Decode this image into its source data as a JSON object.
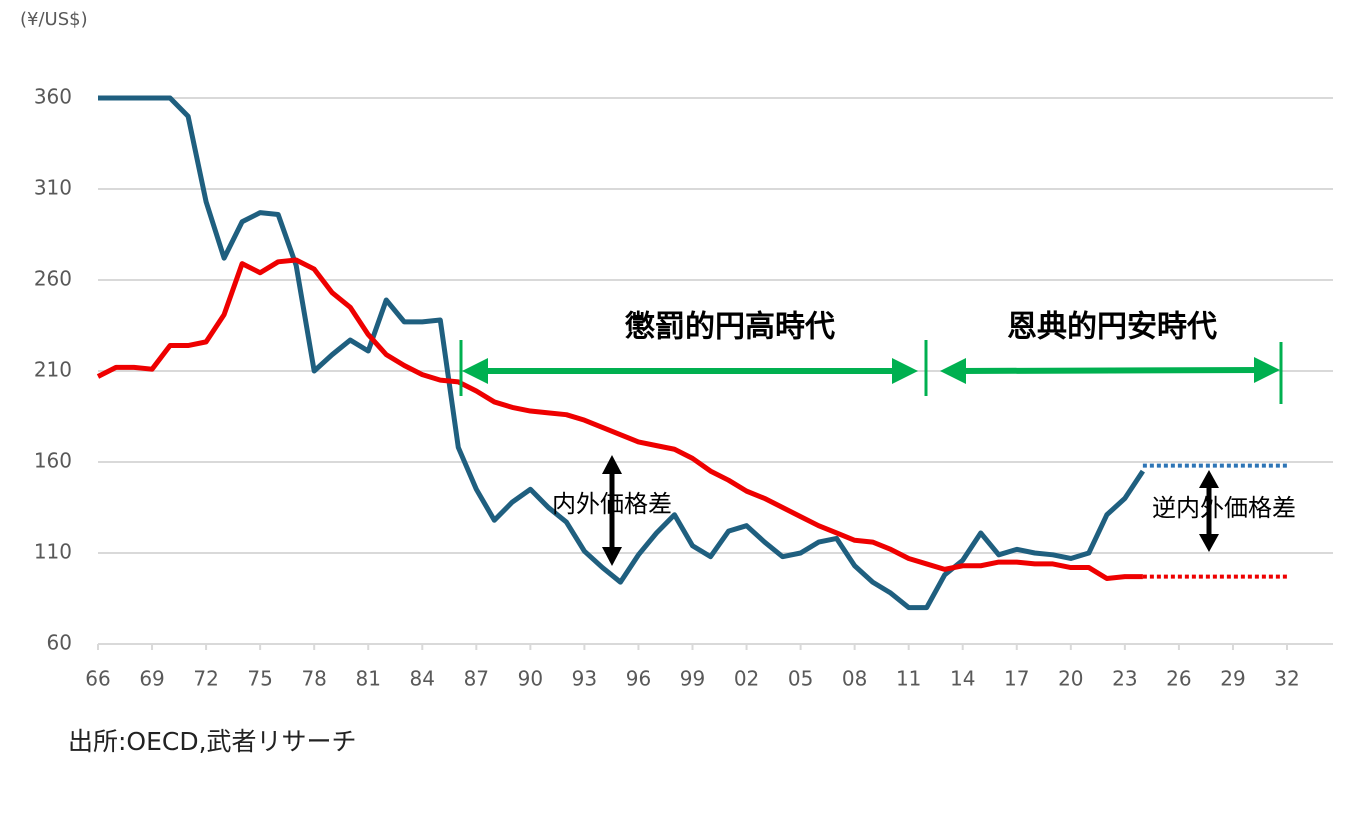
{
  "chart_data": {
    "type": "line",
    "y_unit_label": "(¥/US$)",
    "source": "出所:OECD,武者リサーチ",
    "xlim": [
      1966,
      2032
    ],
    "ylim": [
      60,
      360
    ],
    "yticks": [
      60,
      110,
      160,
      210,
      260,
      310,
      360
    ],
    "xticks": [
      {
        "value": 1966,
        "label": "66"
      },
      {
        "value": 1969,
        "label": "69"
      },
      {
        "value": 1972,
        "label": "72"
      },
      {
        "value": 1975,
        "label": "75"
      },
      {
        "value": 1978,
        "label": "78"
      },
      {
        "value": 1981,
        "label": "81"
      },
      {
        "value": 1984,
        "label": "84"
      },
      {
        "value": 1987,
        "label": "87"
      },
      {
        "value": 1990,
        "label": "90"
      },
      {
        "value": 1993,
        "label": "93"
      },
      {
        "value": 1996,
        "label": "96"
      },
      {
        "value": 1999,
        "label": "99"
      },
      {
        "value": 2002,
        "label": "02"
      },
      {
        "value": 2005,
        "label": "05"
      },
      {
        "value": 2008,
        "label": "08"
      },
      {
        "value": 2011,
        "label": "11"
      },
      {
        "value": 2014,
        "label": "14"
      },
      {
        "value": 2017,
        "label": "17"
      },
      {
        "value": 2020,
        "label": "20"
      },
      {
        "value": 2023,
        "label": "23"
      },
      {
        "value": 2026,
        "label": "26"
      },
      {
        "value": 2029,
        "label": "29"
      },
      {
        "value": 2032,
        "label": "32"
      }
    ],
    "grid": true,
    "series": [
      {
        "color": "#1f5f7f",
        "dash": "solid",
        "x": [
          1966,
          1967,
          1968,
          1969,
          1970,
          1971,
          1972,
          1973,
          1974,
          1975,
          1976,
          1977,
          1978,
          1979,
          1980,
          1981,
          1982,
          1983,
          1984,
          1985,
          1986,
          1987,
          1988,
          1989,
          1990,
          1991,
          1992,
          1993,
          1994,
          1995,
          1996,
          1997,
          1998,
          1999,
          2000,
          2001,
          2002,
          2003,
          2004,
          2005,
          2006,
          2007,
          2008,
          2009,
          2010,
          2011,
          2012,
          2013,
          2014,
          2015,
          2016,
          2017,
          2018,
          2019,
          2020,
          2021,
          2022,
          2023,
          2024
        ],
        "values": [
          360,
          360,
          360,
          360,
          360,
          350,
          303,
          272,
          292,
          297,
          296,
          268,
          210,
          219,
          227,
          221,
          249,
          237,
          237,
          238,
          168,
          145,
          128,
          138,
          145,
          135,
          127,
          111,
          102,
          94,
          109,
          121,
          131,
          114,
          108,
          122,
          125,
          116,
          108,
          110,
          116,
          118,
          103,
          94,
          88,
          80,
          80,
          98,
          106,
          121,
          109,
          112,
          110,
          109,
          107,
          110,
          131,
          140,
          155
        ]
      },
      {
        "color": "#ee0000",
        "dash": "solid",
        "x": [
          1966,
          1967,
          1968,
          1969,
          1970,
          1971,
          1972,
          1973,
          1974,
          1975,
          1976,
          1977,
          1978,
          1979,
          1980,
          1981,
          1982,
          1983,
          1984,
          1985,
          1986,
          1987,
          1988,
          1989,
          1990,
          1991,
          1992,
          1993,
          1994,
          1995,
          1996,
          1997,
          1998,
          1999,
          2000,
          2001,
          2002,
          2003,
          2004,
          2005,
          2006,
          2007,
          2008,
          2009,
          2010,
          2011,
          2012,
          2013,
          2014,
          2015,
          2016,
          2017,
          2018,
          2019,
          2020,
          2021,
          2022,
          2023,
          2024
        ],
        "values": [
          207,
          212,
          212,
          211,
          224,
          224,
          226,
          241,
          269,
          264,
          270,
          271,
          266,
          253,
          245,
          230,
          219,
          213,
          208,
          205,
          204,
          199,
          193,
          190,
          188,
          187,
          186,
          183,
          179,
          175,
          171,
          169,
          167,
          162,
          155,
          150,
          144,
          140,
          135,
          130,
          125,
          121,
          117,
          116,
          112,
          107,
          104,
          101,
          103,
          103,
          105,
          105,
          104,
          104,
          102,
          102,
          96,
          97,
          97
        ]
      },
      {
        "color": "#2e75b6",
        "dash": "dotted",
        "x": [
          2024,
          2032
        ],
        "values": [
          158,
          158
        ]
      },
      {
        "color": "#ee0000",
        "dash": "dotted",
        "x": [
          2024,
          2032
        ],
        "values": [
          97,
          97
        ]
      }
    ],
    "annotations": [
      "懲罰的円高時代",
      "恩典的円安時代",
      "内外価格差",
      "逆内外価格差"
    ]
  }
}
